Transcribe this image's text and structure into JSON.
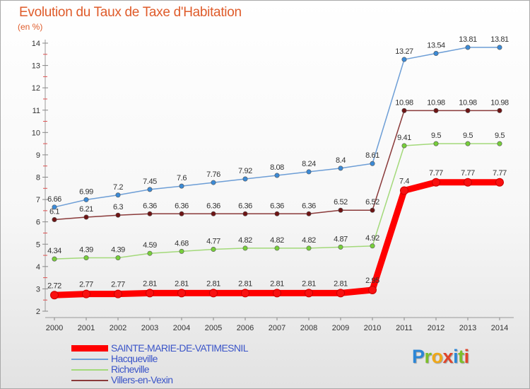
{
  "title": "Evolution du Taux de Taxe d'Habitation",
  "subtitle": "(en %)",
  "logo_letters": [
    {
      "char": "P",
      "color": "#2b86d6"
    },
    {
      "char": "r",
      "color": "#7cbf2a"
    },
    {
      "char": "o",
      "color": "#f0a818"
    },
    {
      "char": "x",
      "color": "#e0442a"
    },
    {
      "char": "i",
      "color": "#2b86d6"
    },
    {
      "char": "t",
      "color": "#7cbf2a"
    },
    {
      "char": "i",
      "color": "#e0442a"
    }
  ],
  "chart_data": {
    "type": "line",
    "x": [
      2000,
      2001,
      2002,
      2003,
      2004,
      2005,
      2006,
      2007,
      2008,
      2009,
      2010,
      2011,
      2012,
      2013,
      2014
    ],
    "ylim": [
      2,
      14
    ],
    "yticks": [
      2,
      3,
      4,
      5,
      6,
      7,
      8,
      9,
      10,
      11,
      12,
      13,
      14
    ],
    "grid": false,
    "legend_position": "bottom-left",
    "series": [
      {
        "name": "SAINTE-MARIE-DE-VATIMESNIL",
        "color": "#ff0000",
        "marker_fill": "#f81010",
        "emphasis": true,
        "values": [
          2.72,
          2.77,
          2.77,
          2.81,
          2.81,
          2.81,
          2.81,
          2.81,
          2.81,
          2.81,
          2.95,
          7.4,
          7.77,
          7.77,
          7.77
        ],
        "labels": [
          "2.72",
          "2.77",
          "2.77",
          "2.81",
          "2.81",
          "2.81",
          "2.81",
          "2.81",
          "2.81",
          "2.81",
          "2.95",
          "7.4",
          "7.77",
          "7.77",
          "7.77"
        ]
      },
      {
        "name": "Hacqueville",
        "color": "#6d9ed6",
        "marker_fill": "#3b8ad6",
        "emphasis": false,
        "values": [
          6.66,
          6.99,
          7.2,
          7.45,
          7.6,
          7.76,
          7.92,
          8.08,
          8.24,
          8.4,
          8.61,
          13.27,
          13.54,
          13.81,
          13.81
        ],
        "labels": [
          "6.66",
          "6.99",
          "7.2",
          "7.45",
          "7.6",
          "7.76",
          "7.92",
          "8.08",
          "8.24",
          "8.4",
          "8.61",
          "13.27",
          "13.54",
          "13.81",
          "13.81"
        ]
      },
      {
        "name": "Richeville",
        "color": "#a3d97a",
        "marker_fill": "#77cf3a",
        "emphasis": false,
        "values": [
          4.34,
          4.39,
          4.39,
          4.59,
          4.68,
          4.77,
          4.82,
          4.82,
          4.82,
          4.87,
          4.92,
          9.41,
          9.5,
          9.5,
          9.5
        ],
        "labels": [
          "4.34",
          "4.39",
          "4.39",
          "4.59",
          "4.68",
          "4.77",
          "4.82",
          "4.82",
          "4.82",
          "4.87",
          "4.92",
          "9.41",
          "9.5",
          "9.5",
          "9.5"
        ]
      },
      {
        "name": "Villers-en-Vexin",
        "color": "#8a3a3a",
        "marker_fill": "#6e1414",
        "emphasis": false,
        "values": [
          6.1,
          6.21,
          6.3,
          6.36,
          6.36,
          6.36,
          6.36,
          6.36,
          6.36,
          6.52,
          6.52,
          10.98,
          10.98,
          10.98,
          10.98
        ],
        "labels": [
          "6.1",
          "6.21",
          "6.3",
          "6.36",
          "6.36",
          "6.36",
          "6.36",
          "6.36",
          "6.36",
          "6.52",
          "6.52",
          "10.98",
          "10.98",
          "10.98",
          "10.98"
        ]
      }
    ]
  }
}
